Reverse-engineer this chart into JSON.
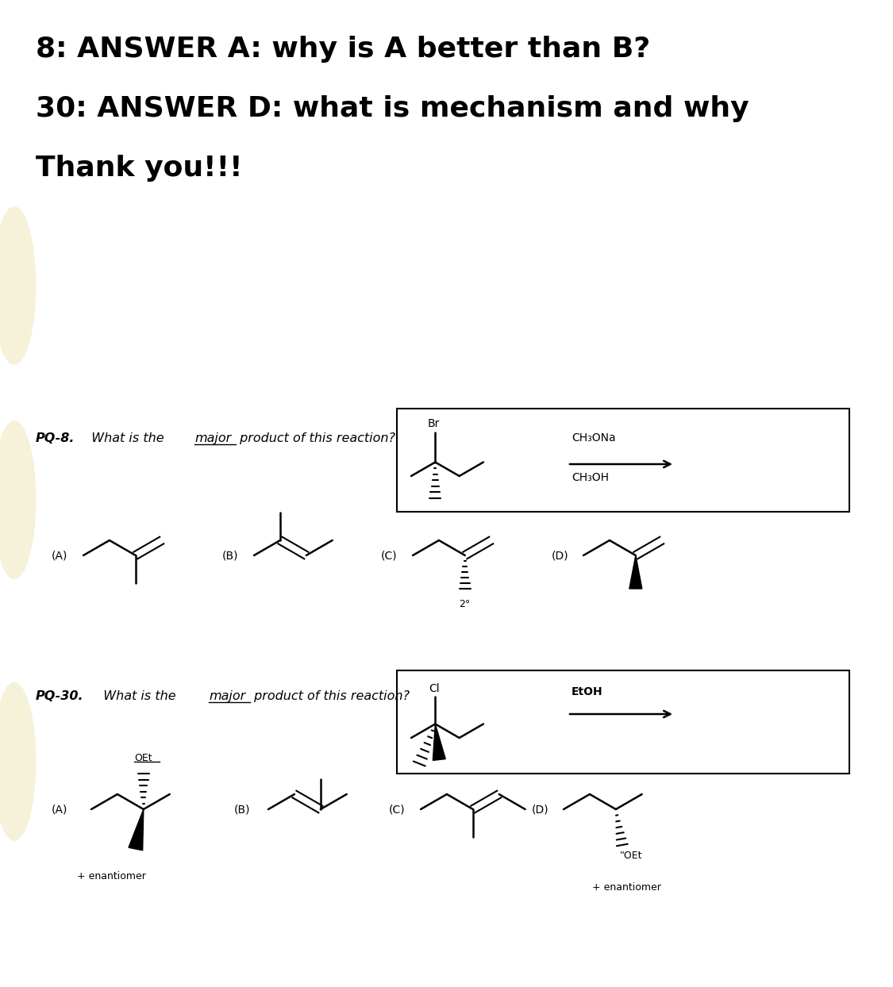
{
  "title_lines": [
    "8: ANSWER A: why is A better than B?",
    "30: ANSWER D: what is mechanism and why",
    "Thank you!!!"
  ],
  "title_fontsize": 26,
  "bg_color": "#ffffff",
  "pq8_reagents": [
    "CH₃ONa",
    "CH₃OH"
  ],
  "pq8_halogen": "Br",
  "pq30_reagents": [
    "EtOH"
  ],
  "pq30_halogen": "Cl",
  "question_fontsize": 11.5
}
